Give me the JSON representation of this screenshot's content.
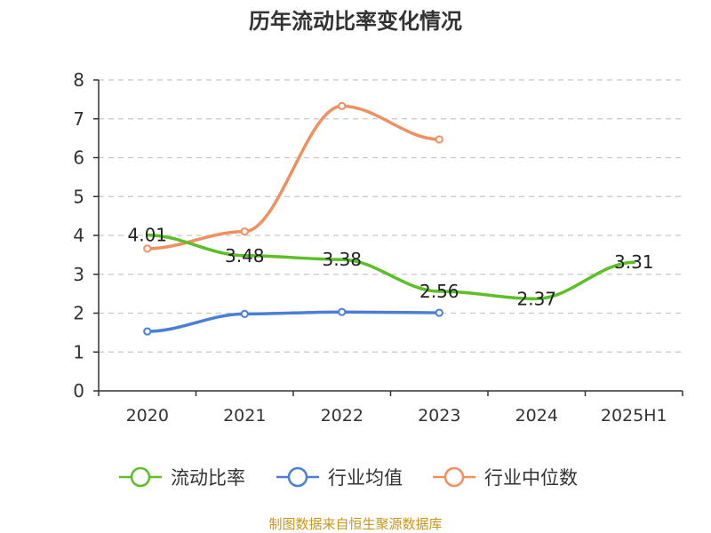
{
  "chart_data": {
    "type": "line",
    "title": "历年流动比率变化情况",
    "categories": [
      "2020",
      "2021",
      "2022",
      "2023",
      "2024",
      "2025H1"
    ],
    "ylim": [
      0,
      8
    ],
    "yticks": [
      "0",
      "1",
      "2",
      "3",
      "4",
      "5",
      "6",
      "7",
      "8"
    ],
    "grid": true,
    "legend_position": "bottom",
    "series": [
      {
        "name": "流动比率",
        "color": "#5cbf27",
        "values": [
          4.01,
          3.48,
          3.38,
          2.56,
          2.37,
          3.31
        ],
        "labels": [
          "4.01",
          "3.48",
          "3.38",
          "2.56",
          "2.37",
          "3.31"
        ],
        "show_markers": false
      },
      {
        "name": "行业均值",
        "color": "#4a7fd6",
        "values": [
          1.53,
          1.98,
          2.03,
          2.01,
          null,
          null
        ],
        "show_markers": true
      },
      {
        "name": "行业中位数",
        "color": "#f09060",
        "values": [
          3.66,
          4.1,
          7.33,
          6.47,
          null,
          null
        ],
        "show_markers": true
      }
    ],
    "source": "制图数据来自恒生聚源数据库"
  }
}
